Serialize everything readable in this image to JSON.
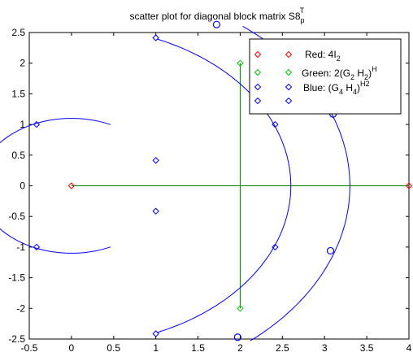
{
  "chart_data": {
    "type": "scatter",
    "title": "scatter plot for diagonal block matrix S8",
    "title_superscript": "T",
    "title_subscript": "p",
    "xlim": [
      -0.5,
      4
    ],
    "ylim": [
      -2.5,
      2.5
    ],
    "xticks": [
      -0.5,
      0,
      0.5,
      1,
      1.5,
      2,
      2.5,
      3,
      3.5,
      4
    ],
    "xtick_labels": [
      "-0.5",
      "0",
      "0.5",
      "1",
      "1.5",
      "2",
      "2.5",
      "3",
      "3.5",
      "4"
    ],
    "yticks": [
      2.5,
      2,
      1.5,
      1,
      0.5,
      0,
      -0.5,
      -1,
      -1.5,
      -2,
      -2.5
    ],
    "ytick_labels": [
      "2.5",
      "2",
      "1.5",
      "1",
      "0.5",
      "0",
      "-0.5",
      "-1",
      "-1.5",
      "-2",
      "-2.5"
    ],
    "grid": false,
    "legend_position": "top-right",
    "series": [
      {
        "name": "Red: 4I",
        "name_subscript": "2",
        "color": "#ff0000",
        "marker": "diamond",
        "points": [
          [
            0,
            0
          ],
          [
            4,
            0
          ]
        ]
      },
      {
        "name": "Green: 2(G",
        "name_parts": [
          [
            "Green: 2(G",
            ""
          ],
          [
            "2",
            "sub"
          ],
          [
            " H",
            ""
          ],
          [
            "2",
            "sub"
          ],
          [
            ")",
            ""
          ],
          [
            "H",
            "sup"
          ]
        ],
        "color": "#00cc00",
        "marker": "diamond",
        "points": [
          [
            2,
            2
          ],
          [
            2,
            -2
          ]
        ]
      },
      {
        "name": "Blue: (G",
        "name_parts": [
          [
            "Blue: (G",
            ""
          ],
          [
            "4",
            "sub"
          ],
          [
            " H",
            ""
          ],
          [
            "4",
            "sub"
          ],
          [
            ")",
            ""
          ],
          [
            "H2",
            "sup"
          ]
        ],
        "color": "#0000ff",
        "marker": "diamond",
        "points": [
          [
            -0.414,
            1
          ],
          [
            -0.414,
            -1
          ],
          [
            1,
            0.414
          ],
          [
            1,
            -0.414
          ],
          [
            1,
            2.414
          ],
          [
            1,
            -2.414
          ],
          [
            2.414,
            1
          ],
          [
            2.414,
            -1
          ]
        ]
      }
    ],
    "lines": [
      {
        "color": "#008000",
        "points": [
          [
            0,
            0
          ],
          [
            4,
            0
          ]
        ]
      },
      {
        "color": "#008000",
        "points": [
          [
            2,
            2
          ],
          [
            2,
            -2
          ]
        ]
      }
    ],
    "curves": [
      {
        "color": "#0000ff",
        "center": [
          0,
          0
        ],
        "radius_x": 1.1,
        "radius_y": 1.1,
        "from_deg": 65,
        "to_deg": 295
      },
      {
        "color": "#0000ff",
        "center": [
          0,
          0
        ],
        "radius_x": 2.6,
        "radius_y": 2.6,
        "from_deg": -67,
        "to_deg": 67
      },
      {
        "color": "#0000ff",
        "center": [
          0,
          0
        ],
        "radius_x": 3.3,
        "radius_y": 3.3,
        "from_deg": -50,
        "to_deg": 52
      }
    ],
    "circle_markers": {
      "color": "#0000ff",
      "points": [
        [
          1.72,
          2.63
        ],
        [
          3.1,
          1.17
        ],
        [
          3.07,
          -1.06
        ],
        [
          1.97,
          -2.47
        ]
      ]
    }
  }
}
